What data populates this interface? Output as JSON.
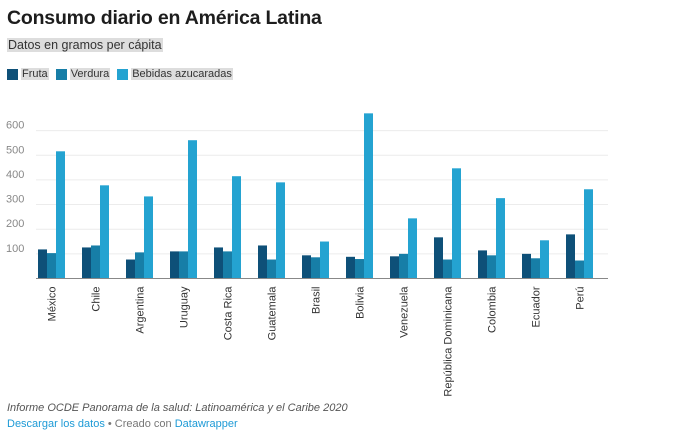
{
  "header": {
    "title": "Consumo diario en América Latina",
    "subtitle": "Datos en gramos per cápita"
  },
  "legend": [
    {
      "label": "Fruta",
      "color": "#0e5078"
    },
    {
      "label": "Verdura",
      "color": "#177ea7"
    },
    {
      "label": "Bebidas azucaradas",
      "color": "#24a3d1"
    }
  ],
  "chart_data": {
    "type": "bar",
    "title": "Consumo diario en América Latina",
    "subtitle": "Datos en gramos per cápita",
    "xlabel": "",
    "ylabel": "",
    "ylim": [
      0,
      680
    ],
    "yticks": [
      100,
      200,
      300,
      400,
      500,
      600
    ],
    "grid": true,
    "legend_position": "top-left",
    "categories": [
      "México",
      "Chile",
      "Argentina",
      "Uruguay",
      "Costa Rica",
      "Guatemala",
      "Brasil",
      "Bolivia",
      "Venezuela",
      "República Dominicana",
      "Colombia",
      "Ecuador",
      "Perú"
    ],
    "series": [
      {
        "name": "Fruta",
        "color": "#0e5078",
        "values": [
          118,
          126,
          77,
          110,
          126,
          134,
          94,
          88,
          90,
          167,
          114,
          100,
          179
        ]
      },
      {
        "name": "Verdura",
        "color": "#177ea7",
        "values": [
          103,
          134,
          106,
          110,
          110,
          77,
          86,
          79,
          100,
          77,
          94,
          82,
          73
        ]
      },
      {
        "name": "Bebidas azucaradas",
        "color": "#24a3d1",
        "values": [
          516,
          378,
          333,
          561,
          415,
          390,
          150,
          670,
          244,
          447,
          326,
          155,
          362
        ]
      }
    ]
  },
  "footer": {
    "source": "Informe OCDE Panorama de la salud: Latinoamérica y el Caribe 2020",
    "download_label": "Descargar los datos",
    "separator": " • Creado con ",
    "credit_label": "Datawrapper"
  }
}
